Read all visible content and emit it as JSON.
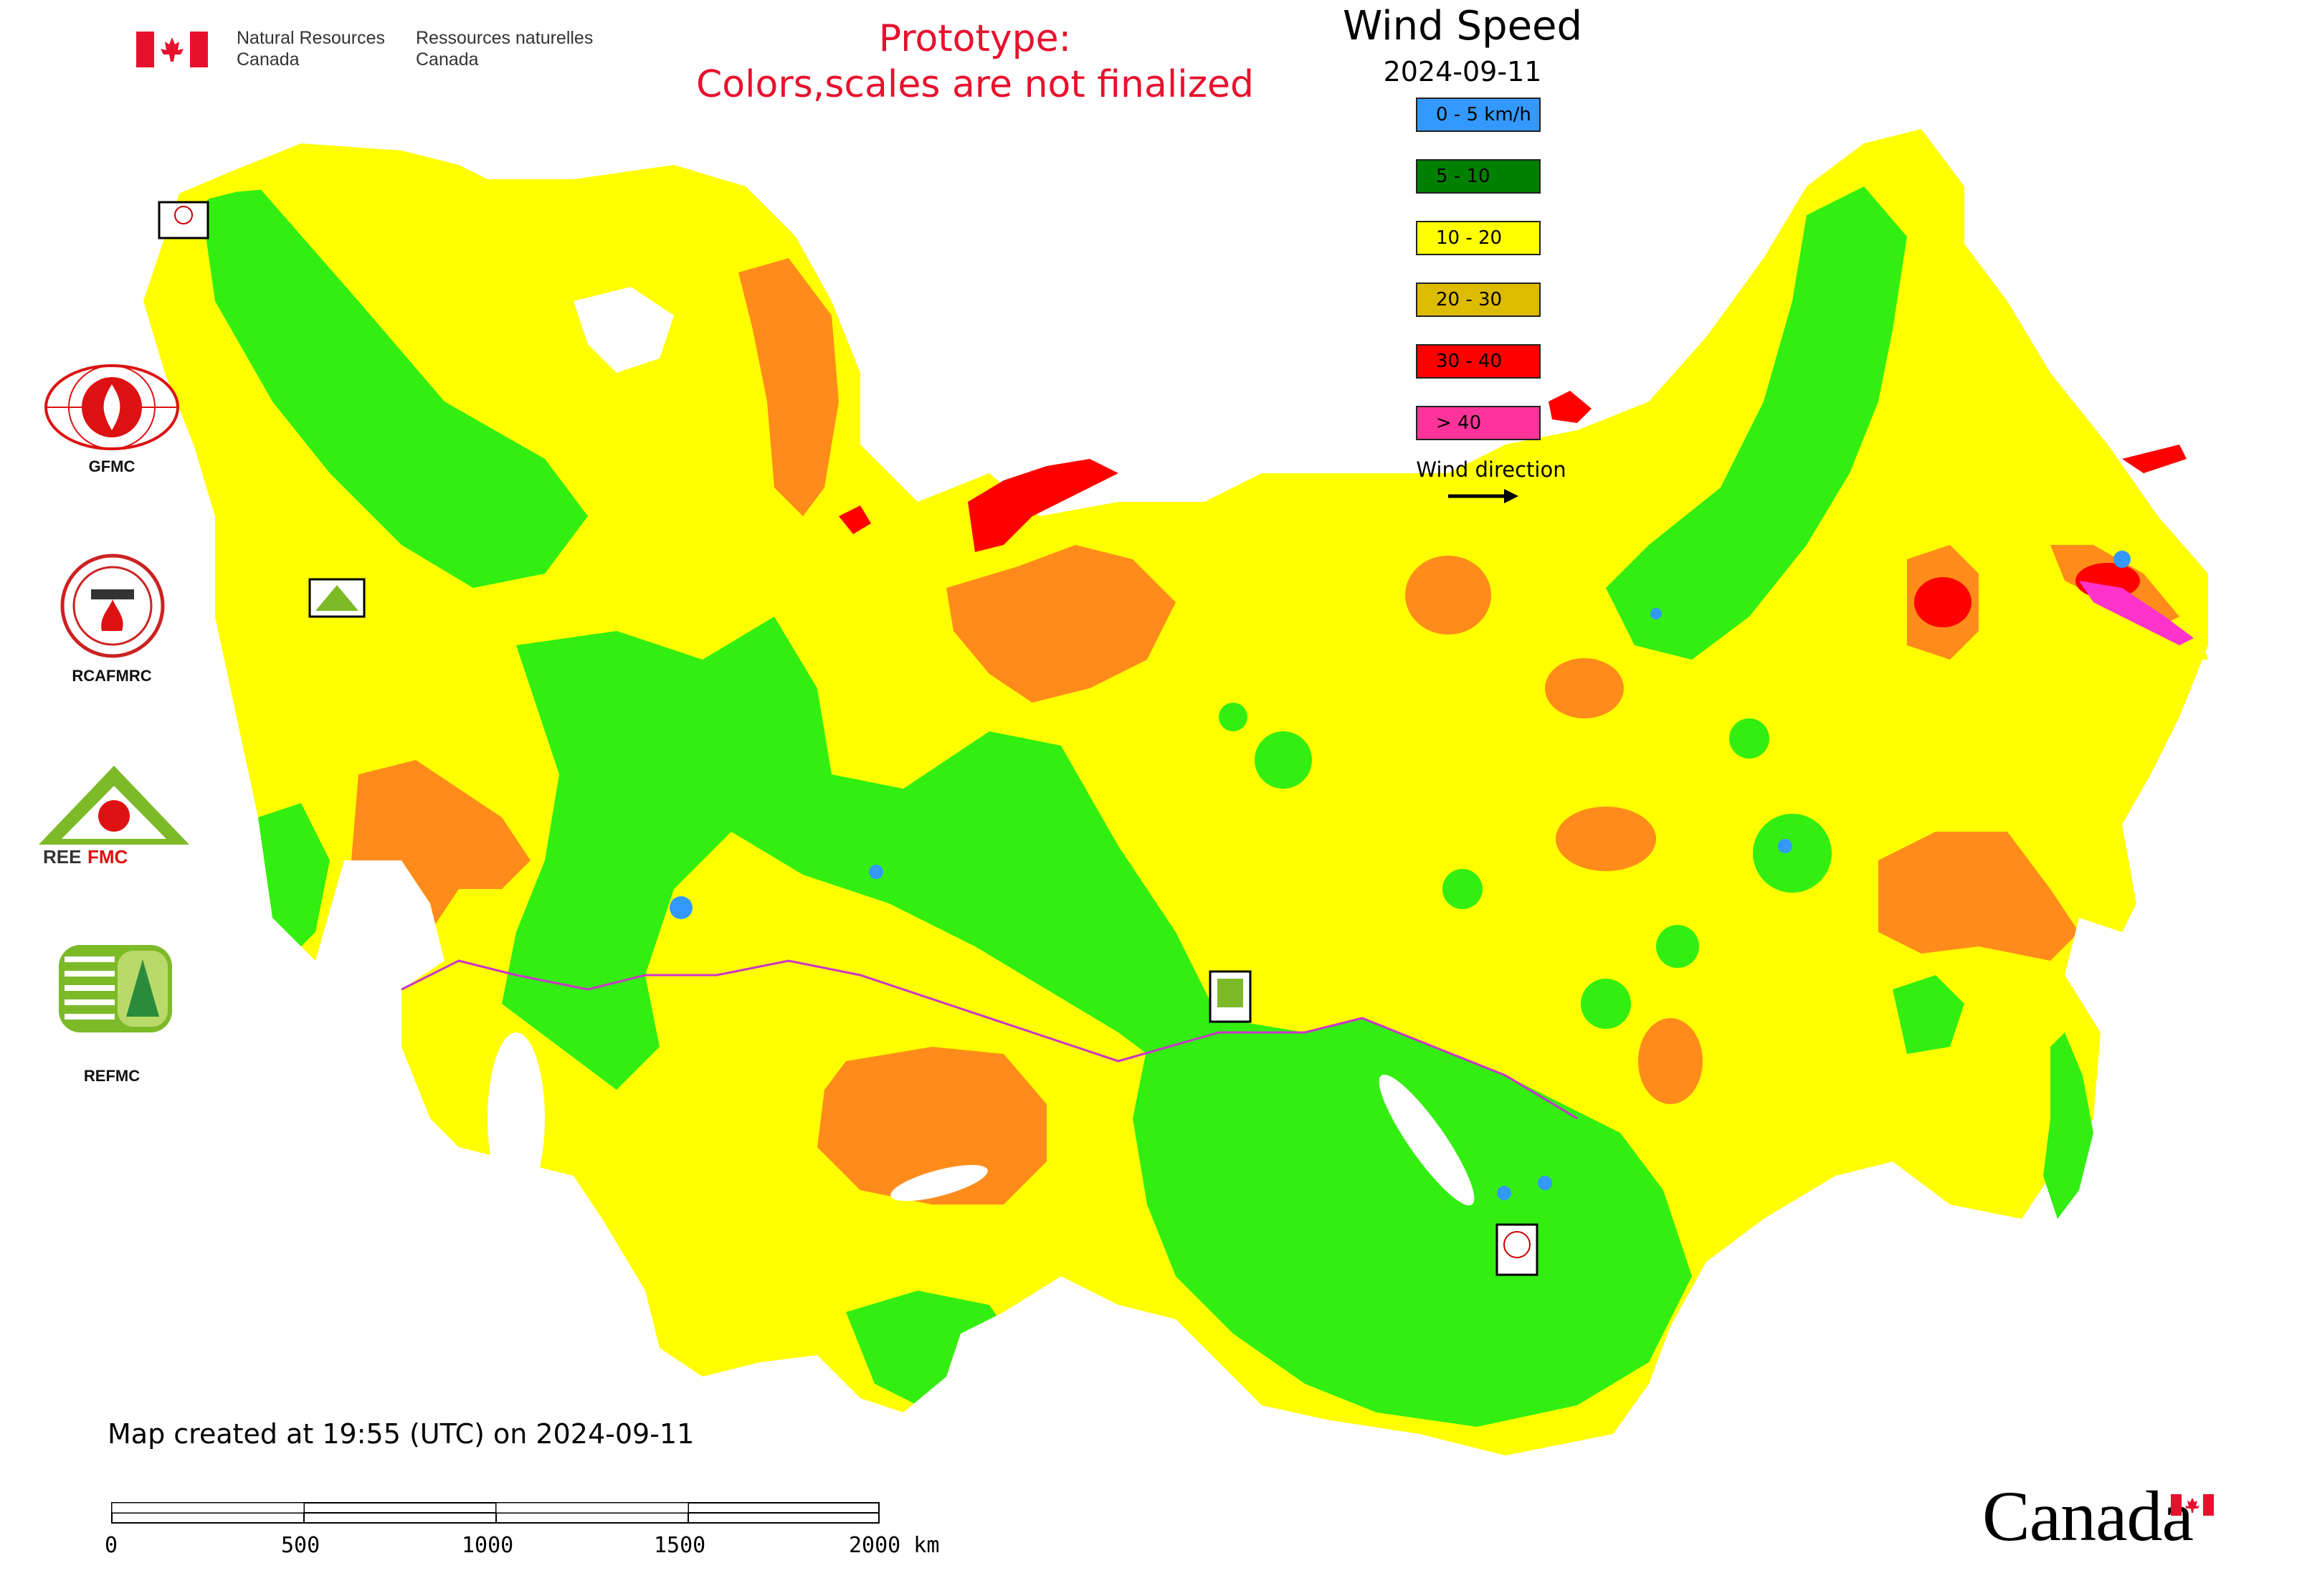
{
  "header": {
    "org_en_line1": "Natural Resources",
    "org_en_line2": "Canada",
    "org_fr_line1": "Ressources naturelles",
    "org_fr_line2": "Canada",
    "notice_line1": "Prototype:",
    "notice_line2": "Colors,scales are not finalized"
  },
  "legend": {
    "title": "Wind Speed",
    "date": "2024-09-11",
    "items": [
      {
        "label": "0 - 5 km/h",
        "color": "#3399ff"
      },
      {
        "label": "5 - 10",
        "color": "#008000"
      },
      {
        "label": "10 - 20",
        "color": "#ffff00"
      },
      {
        "label": "20 - 30",
        "color": "#ddbb00"
      },
      {
        "label": "30 - 40",
        "color": "#ff0000"
      },
      {
        "label": "> 40",
        "color": "#ff3399"
      }
    ],
    "wind_direction_label": "Wind direction"
  },
  "map_colors": {
    "land_base": "#ffff00",
    "calm": "#33ee11",
    "moderate": "#ff8c1a",
    "strong": "#ff0000",
    "very_strong": "#ff33cc",
    "lowest": "#3399ff",
    "borders": "#cc33cc"
  },
  "org_logos": [
    {
      "label": "GFMC",
      "icon": "gfmc-logo-icon"
    },
    {
      "label": "RCAFMRC",
      "icon": "rcafmrc-logo-icon"
    },
    {
      "label": "REEFMC",
      "icon": "reefmc-logo-icon"
    },
    {
      "label": "REFMC",
      "icon": "refmc-logo-icon"
    }
  ],
  "footer": {
    "created_text": "Map created at 19:55 (UTC) on 2024-09-11",
    "scale_ticks": [
      "0",
      "500",
      "1000",
      "1500",
      "2000 km"
    ],
    "wordmark": "Canada"
  }
}
